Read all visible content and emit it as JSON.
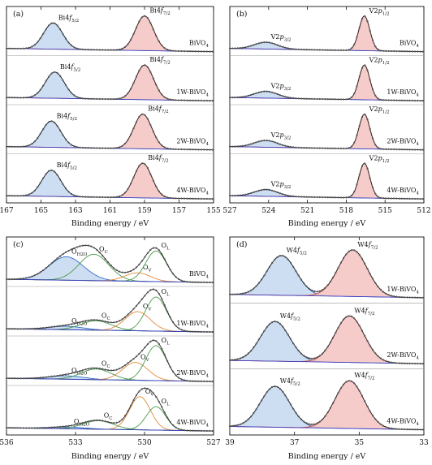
{
  "colors": {
    "blue_peak": "#2f6fc6",
    "blue_fill": "#c6d8f0",
    "red_peak": "#d64035",
    "red_fill": "#f3c3bf",
    "green": "#4a9a4a",
    "orange": "#e08a3a",
    "background_line": "#3a3fbf",
    "data_points": "#555555",
    "envelope": "#222222"
  },
  "chart_data": [
    {
      "panel": "(a)",
      "type": "line",
      "xlabel": "Binding energy / eV",
      "xlim": [
        167,
        155
      ],
      "xticks": [
        "167",
        "165",
        "163",
        "161",
        "159",
        "157",
        "155"
      ],
      "series": [
        {
          "name": "BiVO4",
          "peaks": [
            {
              "label": "Bi4f5/2",
              "center": 164.3,
              "height": 0.62,
              "width": 0.55,
              "color": "blue"
            },
            {
              "label": "Bi4f7/2",
              "center": 159.0,
              "height": 0.82,
              "width": 0.52,
              "color": "red"
            }
          ]
        },
        {
          "name": "1W-BiVO4",
          "peaks": [
            {
              "label": "Bi4f5/2",
              "center": 164.2,
              "height": 0.62,
              "width": 0.55,
              "color": "blue"
            },
            {
              "label": "Bi4f7/2",
              "center": 159.0,
              "height": 0.82,
              "width": 0.52,
              "color": "red"
            }
          ]
        },
        {
          "name": "2W-BiVO4",
          "peaks": [
            {
              "label": "Bi4f5/2",
              "center": 164.4,
              "height": 0.62,
              "width": 0.55,
              "color": "blue"
            },
            {
              "label": "Bi4f7/2",
              "center": 159.1,
              "height": 0.82,
              "width": 0.52,
              "color": "red"
            }
          ]
        },
        {
          "name": "4W-BiVO4",
          "peaks": [
            {
              "label": "Bi4f5/2",
              "center": 164.4,
              "height": 0.62,
              "width": 0.55,
              "color": "blue"
            },
            {
              "label": "Bi4f7/2",
              "center": 159.1,
              "height": 0.82,
              "width": 0.52,
              "color": "red"
            }
          ]
        }
      ]
    },
    {
      "panel": "(b)",
      "type": "line",
      "xlabel": "Binding energy / eV",
      "xlim": [
        527,
        512
      ],
      "xticks": [
        "527",
        "524",
        "521",
        "518",
        "515",
        "512"
      ],
      "series": [
        {
          "name": "BiVO4",
          "peaks": [
            {
              "label": "V2p3/2",
              "center": 524.2,
              "height": 0.16,
              "width": 0.9,
              "color": "blue"
            },
            {
              "label": "V2p1/2",
              "center": 516.6,
              "height": 0.82,
              "width": 0.42,
              "color": "red"
            }
          ]
        },
        {
          "name": "1W-BiVO4",
          "peaks": [
            {
              "label": "V2p3/2",
              "center": 524.2,
              "height": 0.16,
              "width": 0.9,
              "color": "blue"
            },
            {
              "label": "V2p1/2",
              "center": 516.6,
              "height": 0.82,
              "width": 0.42,
              "color": "red"
            }
          ]
        },
        {
          "name": "2W-BiVO4",
          "peaks": [
            {
              "label": "V2p3/2",
              "center": 524.2,
              "height": 0.16,
              "width": 0.9,
              "color": "blue"
            },
            {
              "label": "V2p1/2",
              "center": 516.6,
              "height": 0.82,
              "width": 0.42,
              "color": "red"
            }
          ]
        },
        {
          "name": "4W-BiVO4",
          "peaks": [
            {
              "label": "V2p3/2",
              "center": 524.2,
              "height": 0.16,
              "width": 0.9,
              "color": "blue"
            },
            {
              "label": "V2p1/2",
              "center": 516.6,
              "height": 0.82,
              "width": 0.42,
              "color": "red"
            }
          ]
        }
      ]
    },
    {
      "panel": "(c)",
      "type": "line",
      "xlabel": "Binding energy / eV",
      "xlim": [
        536,
        527
      ],
      "xticks": [
        "536",
        "533",
        "530",
        "527"
      ],
      "series": [
        {
          "name": "BiVO4",
          "peaks": [
            {
              "label": "OH2O",
              "center": 533.4,
              "height": 0.55,
              "width": 0.75,
              "color": "blue"
            },
            {
              "label": "OC",
              "center": 532.2,
              "height": 0.62,
              "width": 0.65,
              "color": "green"
            },
            {
              "label": "OV",
              "center": 530.3,
              "height": 0.2,
              "width": 0.55,
              "color": "orange"
            },
            {
              "label": "OL",
              "center": 529.5,
              "height": 0.72,
              "width": 0.45,
              "color": "green"
            }
          ]
        },
        {
          "name": "1W-BiVO4",
          "peaks": [
            {
              "label": "OH2O",
              "center": 533.4,
              "height": 0.08,
              "width": 0.75,
              "color": "blue"
            },
            {
              "label": "OC",
              "center": 532.1,
              "height": 0.22,
              "width": 0.65,
              "color": "green"
            },
            {
              "label": "OV",
              "center": 530.3,
              "height": 0.45,
              "width": 0.55,
              "color": "orange"
            },
            {
              "label": "OL",
              "center": 529.5,
              "height": 0.8,
              "width": 0.45,
              "color": "green"
            }
          ]
        },
        {
          "name": "2W-BiVO4",
          "peaks": [
            {
              "label": "OH2O",
              "center": 533.4,
              "height": 0.08,
              "width": 0.75,
              "color": "blue"
            },
            {
              "label": "OC",
              "center": 532.1,
              "height": 0.25,
              "width": 0.65,
              "color": "green"
            },
            {
              "label": "OV",
              "center": 530.4,
              "height": 0.42,
              "width": 0.55,
              "color": "orange"
            },
            {
              "label": "OL",
              "center": 529.5,
              "height": 0.82,
              "width": 0.45,
              "color": "green"
            }
          ]
        },
        {
          "name": "4W-BiVO4",
          "peaks": [
            {
              "label": "OH2O",
              "center": 533.3,
              "height": 0.04,
              "width": 0.75,
              "color": "blue"
            },
            {
              "label": "OC",
              "center": 532.0,
              "height": 0.2,
              "width": 0.65,
              "color": "green"
            },
            {
              "label": "OV",
              "center": 530.2,
              "height": 0.78,
              "width": 0.45,
              "color": "orange"
            },
            {
              "label": "OL",
              "center": 529.5,
              "height": 0.55,
              "width": 0.42,
              "color": "green"
            }
          ]
        }
      ]
    },
    {
      "panel": "(d)",
      "type": "line",
      "xlabel": "Binding energy / eV",
      "xlim": [
        39,
        33
      ],
      "xticks": [
        "39",
        "37",
        "35",
        "33"
      ],
      "series": [
        {
          "name": "1W-BiVO4",
          "peaks": [
            {
              "label": "W4f5/2",
              "center": 37.4,
              "height": 0.7,
              "width": 0.45,
              "color": "blue"
            },
            {
              "label": "W4f7/2",
              "center": 35.2,
              "height": 0.82,
              "width": 0.45,
              "color": "red"
            }
          ]
        },
        {
          "name": "2W-BiVO4",
          "peaks": [
            {
              "label": "W4f5/2",
              "center": 37.6,
              "height": 0.7,
              "width": 0.45,
              "color": "blue"
            },
            {
              "label": "W4f7/2",
              "center": 35.3,
              "height": 0.82,
              "width": 0.45,
              "color": "red"
            }
          ]
        },
        {
          "name": "4W-BiVO4",
          "peaks": [
            {
              "label": "W4f5/2",
              "center": 37.6,
              "height": 0.72,
              "width": 0.45,
              "color": "blue"
            },
            {
              "label": "W4f7/2",
              "center": 35.3,
              "height": 0.84,
              "width": 0.45,
              "color": "red"
            }
          ]
        }
      ]
    }
  ]
}
